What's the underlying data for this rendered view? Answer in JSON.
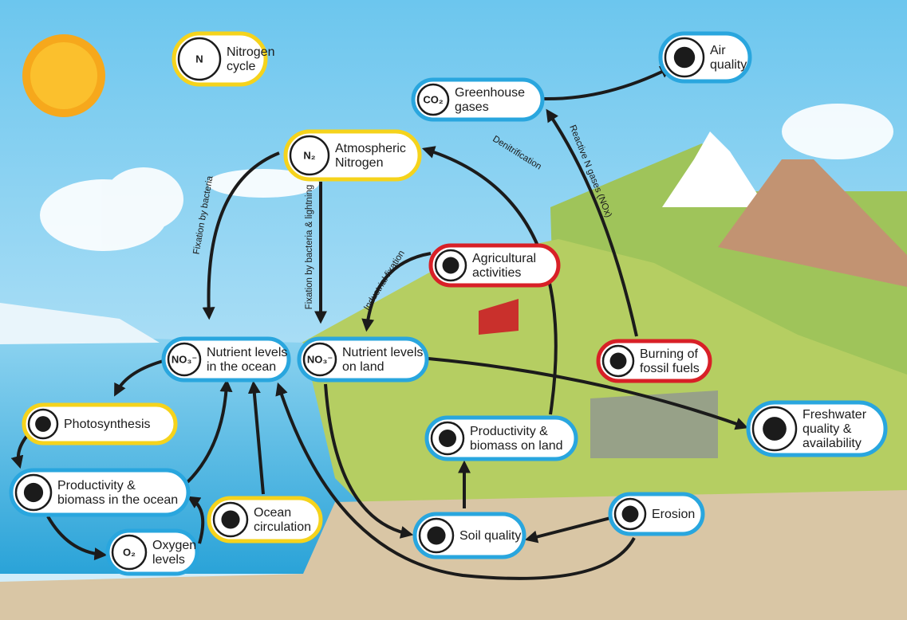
{
  "nodes": [
    {
      "lines": [
        "Nitrogen",
        "cycle"
      ],
      "icon": "N"
    },
    {
      "lines": [
        "Air",
        "quality"
      ]
    },
    {
      "lines": [
        "Greenhouse",
        "gases"
      ],
      "icon": "CO₂"
    },
    {
      "lines": [
        "Atmospheric",
        "Nitrogen"
      ],
      "icon": "N₂"
    },
    {
      "lines": [
        "Agricultural",
        "activities"
      ]
    },
    {
      "lines": [
        "Nutrient levels",
        "in the ocean"
      ],
      "icon": "NO₃⁻"
    },
    {
      "lines": [
        "Nutrient levels",
        "on land"
      ],
      "icon": "NO₃⁻"
    },
    {
      "lines": [
        "Burning of",
        "fossil fuels"
      ]
    },
    {
      "lines": [
        "Photosynthesis"
      ]
    },
    {
      "lines": [
        "Productivity &",
        "biomass on land"
      ]
    },
    {
      "lines": [
        "Freshwater",
        "quality &",
        "availability"
      ]
    },
    {
      "lines": [
        "Productivity &",
        "biomass in the ocean"
      ]
    },
    {
      "lines": [
        "Ocean",
        "circulation"
      ]
    },
    {
      "lines": [
        "Erosion"
      ]
    },
    {
      "lines": [
        "Soil quality"
      ]
    },
    {
      "lines": [
        "Oxygen",
        "levels"
      ],
      "icon": "O₂"
    }
  ],
  "edges": [
    {
      "label": "Fixation by bacteria"
    },
    {
      "label": "Fixation by bacteria & lightning"
    },
    {
      "label": "Industrial fixation"
    },
    {
      "label": "Denitrification"
    },
    {
      "label": "Reactive N gases (NOx)"
    }
  ]
}
